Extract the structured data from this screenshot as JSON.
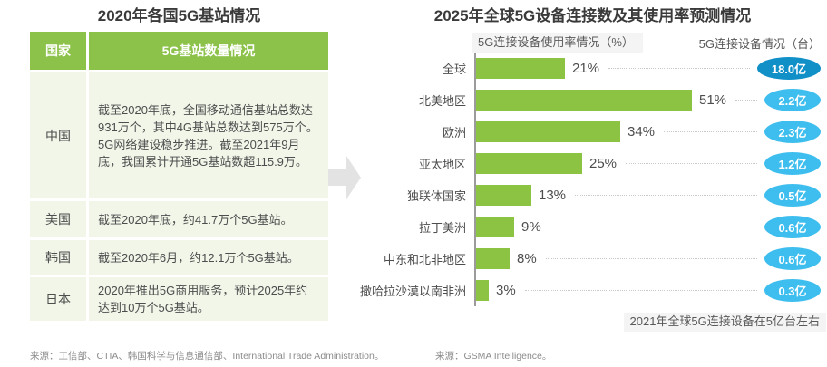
{
  "left_panel": {
    "title": "2020年各国5G基站情况",
    "table": {
      "col1_header": "国家",
      "col2_header": "5G基站数量情况",
      "rows": [
        {
          "country": "中国",
          "detail": "截至2020年底，全国移动通信基站总数达931万个，其中4G基站总数达到575万个。5G网络建设稳步推进。截至2021年9月底，我国累计开通5G基站数超115.9万。"
        },
        {
          "country": "美国",
          "detail": "截至2020年底，约41.7万个5G基站。"
        },
        {
          "country": "韩国",
          "detail": "截至2020年6月，约12.1万个5G基站。"
        },
        {
          "country": "日本",
          "detail": "2020年推出5G商用服务，预计2025年约达到10万个5G基站。"
        }
      ]
    },
    "source": "来源：工信部、CTIA、韩国科学与信息通信部、International Trade Administration。"
  },
  "right_panel": {
    "title": "2025年全球5G设备连接数及其使用率预测情况",
    "usage_header": "5G连接设备使用率情况（%）",
    "devices_header": "5G连接设备情况（台）",
    "note": "2021年全球5G连接设备在5亿台左右",
    "source": "来源：GSMA Intelligence。"
  },
  "chart_data": {
    "type": "bar",
    "orientation": "horizontal",
    "title": "2025年全球5G设备连接数及其使用率预测情况",
    "categories": [
      "全球",
      "北美地区",
      "欧洲",
      "亚太地区",
      "独联体国家",
      "拉丁美洲",
      "中东和北非地区",
      "撒哈拉沙漠以南非洲"
    ],
    "series": [
      {
        "name": "5G连接设备使用率情况（%）",
        "unit": "%",
        "values": [
          21,
          51,
          34,
          25,
          13,
          9,
          8,
          3
        ]
      },
      {
        "name": "5G连接设备情况（台）",
        "unit": "亿台",
        "labels": [
          "18.0亿",
          "2.2亿",
          "2.3亿",
          "1.2亿",
          "0.5亿",
          "0.6亿",
          "0.6亿",
          "0.3亿"
        ]
      }
    ],
    "xlim": [
      0,
      55
    ],
    "grid": false,
    "legend_position": "top",
    "highlight_index": 0,
    "note": "2021年全球5G连接设备在5亿台左右"
  },
  "colors": {
    "green": "#8cc342",
    "row_bg": "#f1f6e9",
    "header_green": "#8cc24a",
    "badge_blue": "#3ebeee",
    "badge_dark_blue": "#1190c8",
    "axis_gray": "#9b9b9b",
    "arrow_gray": "#e3e3e3"
  }
}
